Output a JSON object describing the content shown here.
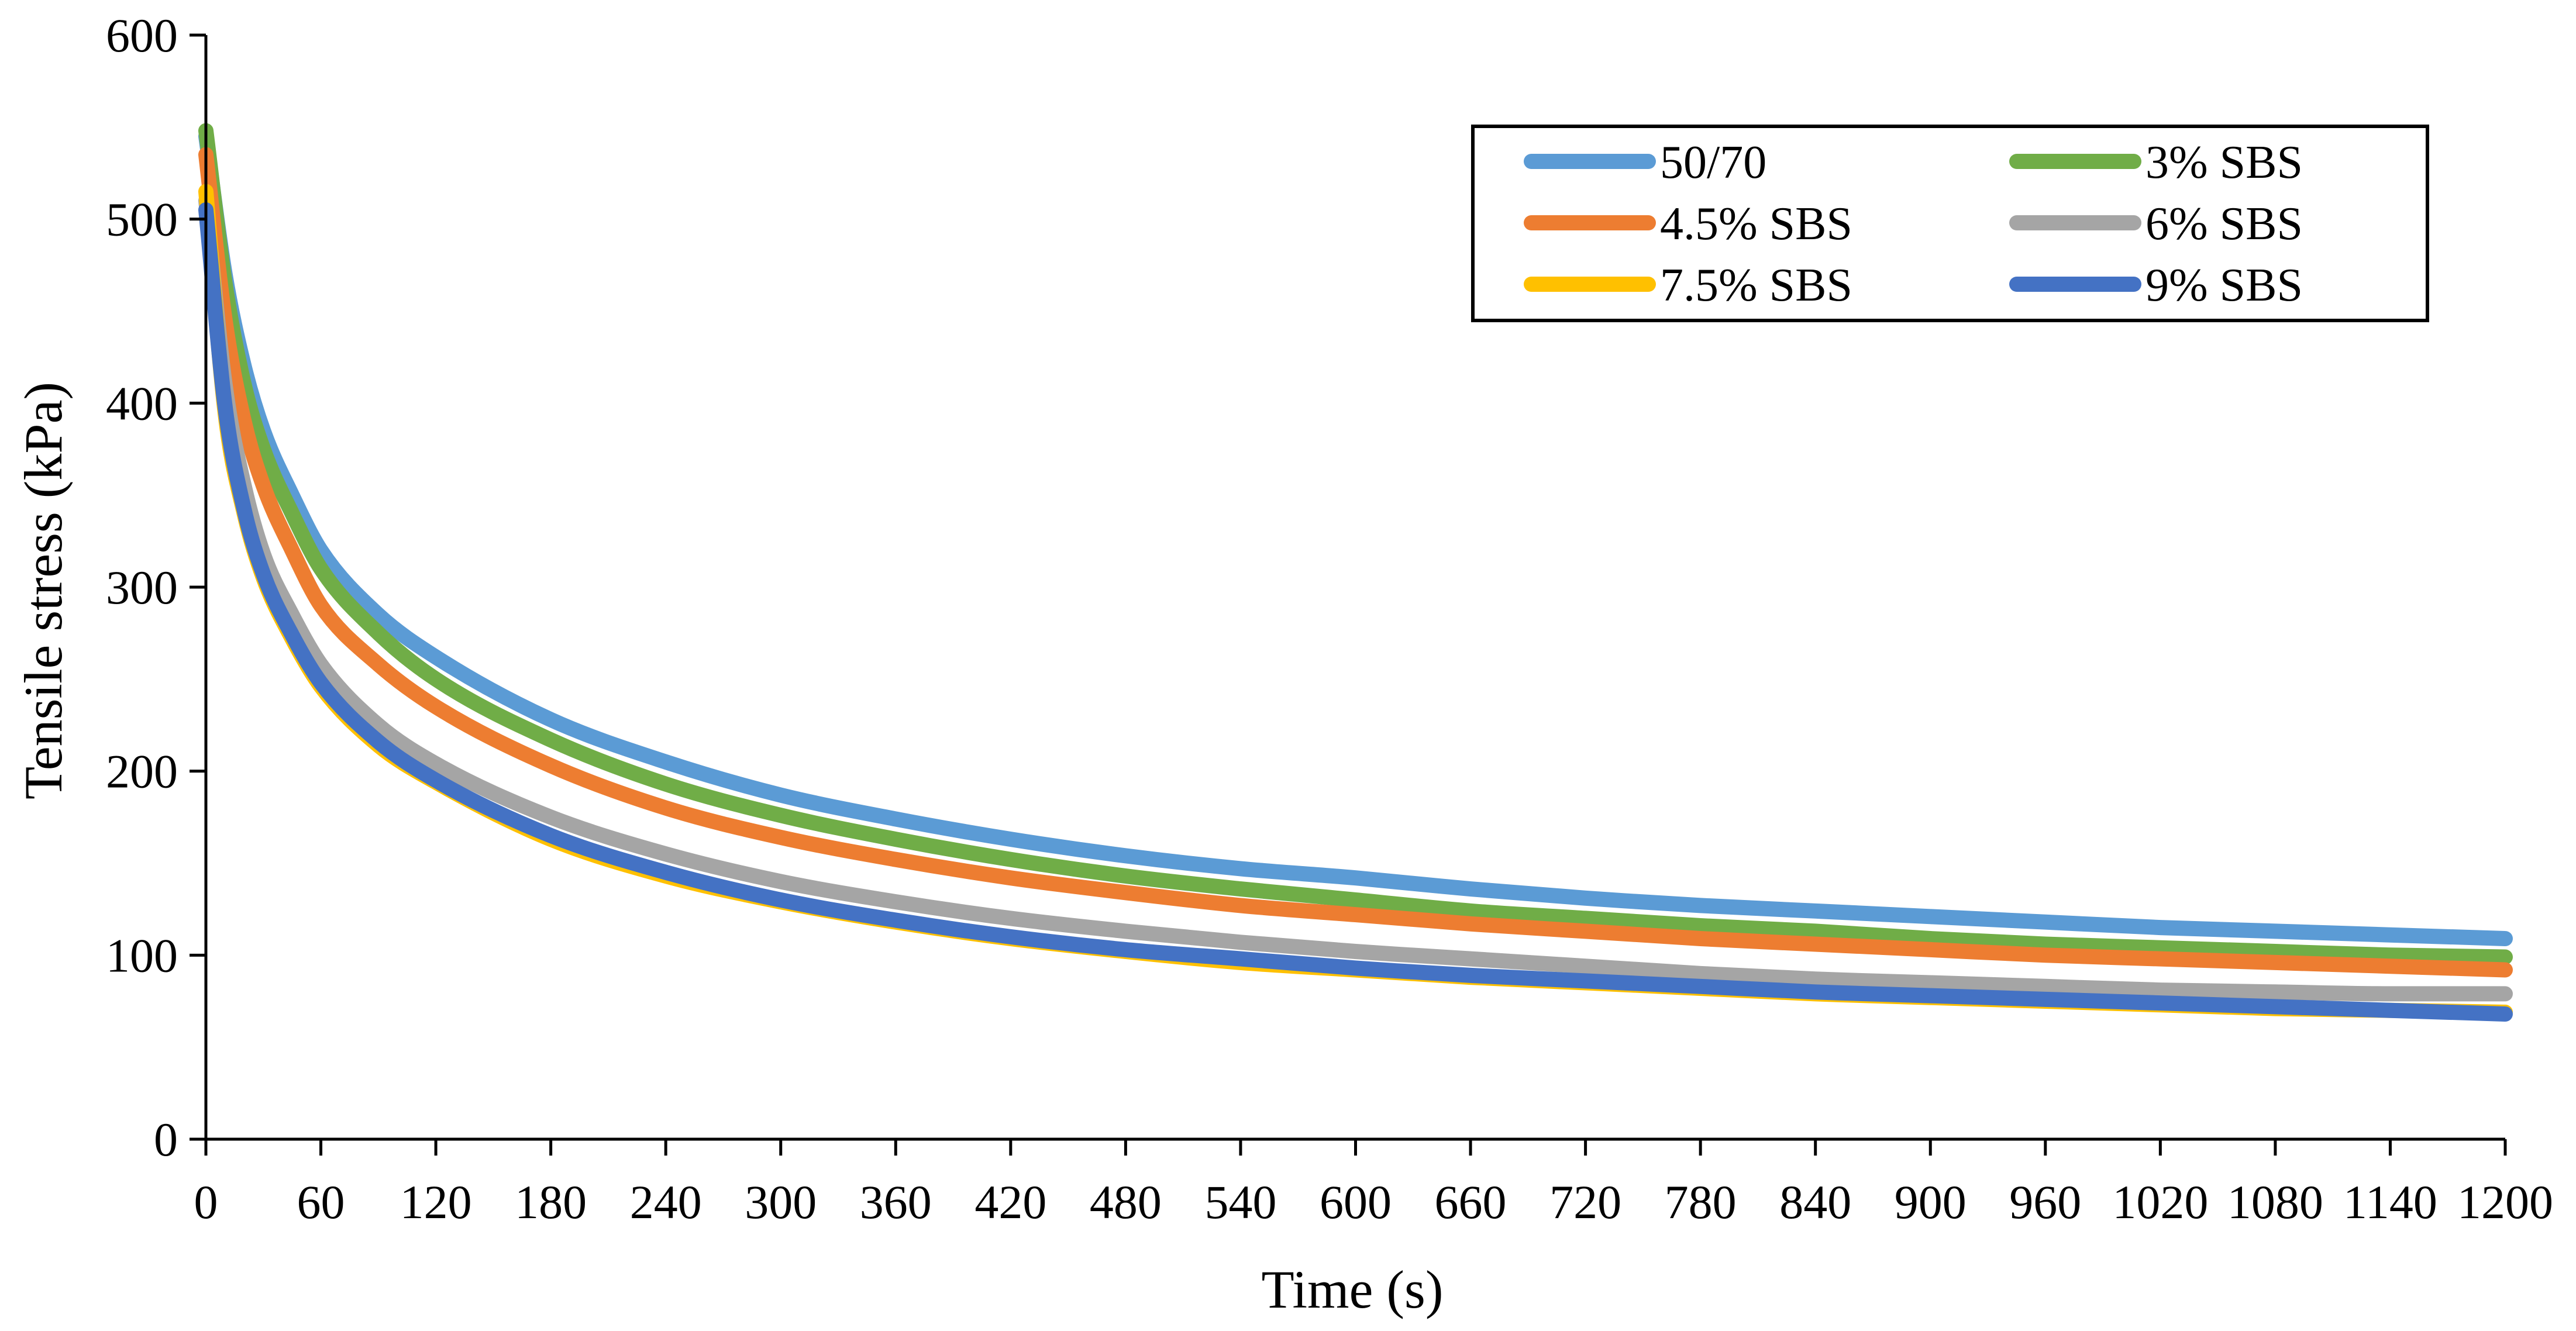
{
  "chart_data": {
    "type": "line",
    "title": "",
    "xlabel": "Time (s)",
    "ylabel": "Tensile stress (kPa)",
    "xlim": [
      0,
      1200
    ],
    "ylim": [
      0,
      600
    ],
    "x_ticks": [
      "0",
      "60",
      "120",
      "180",
      "240",
      "300",
      "360",
      "420",
      "480",
      "540",
      "600",
      "660",
      "720",
      "780",
      "840",
      "900",
      "960",
      "1020",
      "1080",
      "1140",
      "1200"
    ],
    "y_ticks": [
      "0",
      "100",
      "200",
      "300",
      "400",
      "500",
      "600"
    ],
    "grid": false,
    "legend_position": "top-right",
    "x": [
      0,
      10,
      20,
      30,
      45,
      60,
      90,
      120,
      180,
      240,
      300,
      360,
      420,
      480,
      540,
      600,
      660,
      720,
      780,
      840,
      900,
      960,
      1020,
      1080,
      1140,
      1200
    ],
    "series": [
      {
        "name": "50/70",
        "color": "#5B9BD5",
        "values": [
          545,
          470,
          420,
          385,
          350,
          320,
          285,
          262,
          228,
          205,
          187,
          174,
          163,
          154,
          147,
          142,
          136,
          131,
          127,
          124,
          121,
          118,
          115,
          113,
          111,
          109
        ]
      },
      {
        "name": "3% SBS",
        "color": "#70AD47",
        "values": [
          548,
          465,
          410,
          375,
          340,
          310,
          275,
          250,
          217,
          193,
          176,
          163,
          152,
          143,
          136,
          130,
          124,
          120,
          116,
          113,
          109,
          106,
          104,
          102,
          100,
          99
        ]
      },
      {
        "name": "4.5% SBS",
        "color": "#ED7D31",
        "values": [
          535,
          445,
          390,
          355,
          320,
          290,
          258,
          235,
          203,
          180,
          164,
          152,
          142,
          134,
          127,
          122,
          117,
          113,
          109,
          106,
          103,
          100,
          98,
          96,
          94,
          92
        ]
      },
      {
        "name": "6% SBS",
        "color": "#A5A5A5",
        "values": [
          510,
          410,
          355,
          318,
          285,
          258,
          225,
          204,
          175,
          155,
          140,
          129,
          120,
          113,
          107,
          102,
          98,
          94,
          90,
          87,
          85,
          83,
          81,
          80,
          79,
          79
        ]
      },
      {
        "name": "7.5% SBS",
        "color": "#FFC000",
        "values": [
          515,
          395,
          340,
          305,
          272,
          246,
          214,
          194,
          163,
          143,
          129,
          118,
          109,
          102,
          96,
          92,
          88,
          85,
          82,
          79,
          77,
          75,
          73,
          71,
          70,
          69
        ]
      },
      {
        "name": "9% SBS",
        "color": "#4472C4",
        "values": [
          505,
          398,
          342,
          307,
          274,
          248,
          216,
          195,
          165,
          145,
          130,
          119,
          110,
          103,
          98,
          93,
          89,
          86,
          83,
          80,
          78,
          76,
          74,
          72,
          70,
          68
        ]
      }
    ]
  }
}
